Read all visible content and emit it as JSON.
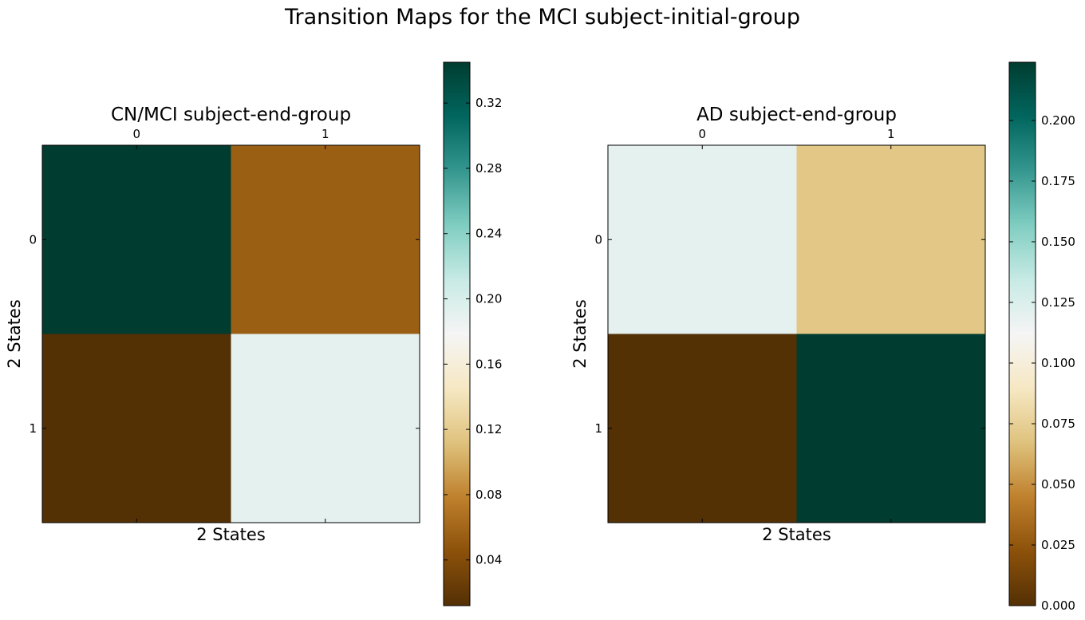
{
  "figure": {
    "title": "Transition Maps for the MCI subject-initial-group"
  },
  "colormap": {
    "name": "BrBG",
    "stops": [
      "#543005",
      "#8c510a",
      "#bf812d",
      "#dfc27d",
      "#f6e8c3",
      "#f5f5f5",
      "#c7eae5",
      "#80cdc1",
      "#35978f",
      "#01665e",
      "#003c30"
    ]
  },
  "chart_data": [
    {
      "type": "heatmap",
      "title": "CN/MCI subject-end-group",
      "xlabel": "2 States",
      "ylabel": "2 States",
      "x_tick_labels": [
        "0",
        "1"
      ],
      "y_tick_labels": [
        "0",
        "1"
      ],
      "values": [
        [
          0.345,
          0.055
        ],
        [
          0.012,
          0.19
        ]
      ],
      "colorbar": {
        "vmin": 0.012,
        "vmax": 0.345,
        "ticks": [
          "0.04",
          "0.08",
          "0.12",
          "0.16",
          "0.20",
          "0.24",
          "0.28",
          "0.32"
        ]
      }
    },
    {
      "type": "heatmap",
      "title": "AD subject-end-group",
      "xlabel": "2 States",
      "ylabel": "2 States",
      "x_tick_labels": [
        "0",
        "1"
      ],
      "y_tick_labels": [
        "0",
        "1"
      ],
      "values": [
        [
          0.12,
          0.07
        ],
        [
          0.0,
          0.224
        ]
      ],
      "colorbar": {
        "vmin": 0.0,
        "vmax": 0.224,
        "ticks": [
          "0.000",
          "0.025",
          "0.050",
          "0.075",
          "0.100",
          "0.125",
          "0.150",
          "0.175",
          "0.200"
        ]
      }
    }
  ]
}
